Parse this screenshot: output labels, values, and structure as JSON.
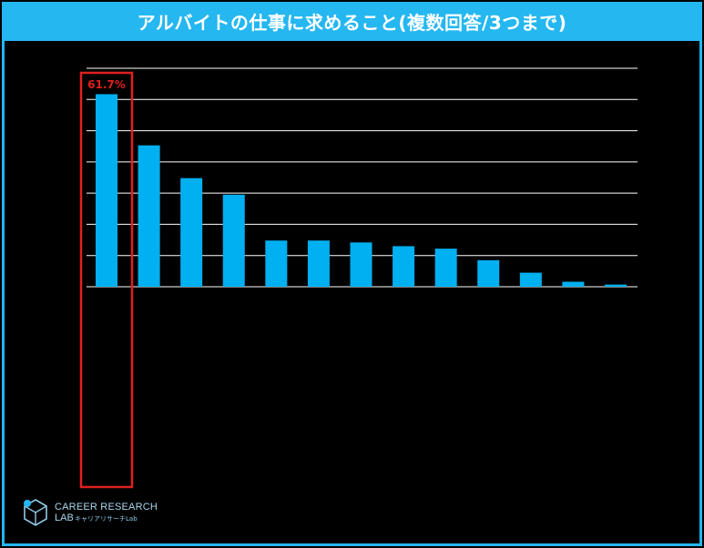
{
  "title": "アルバイトの仕事に求めること(複数回答/3つまで)",
  "colors": {
    "frame": "#25B7F0",
    "title_bg": "#25B7F0",
    "bar": "#00B0F0",
    "highlight": "#E0201E",
    "gridline": "#FFFFFF",
    "background": "#000000"
  },
  "logo": {
    "main": "CAREER RESEARCH",
    "lab": "LAB",
    "sub": "キャリアリサーチLab",
    "icon": "cube-logo-icon"
  },
  "chart_data": {
    "type": "bar",
    "ylim": [
      0,
      70
    ],
    "grid": true,
    "gridlines": [
      10,
      20,
      30,
      40,
      50,
      60,
      70
    ],
    "highlight_label": "61.7%",
    "values": [
      61.7,
      45.3,
      34.8,
      29.5,
      14.8,
      14.8,
      14.2,
      13.0,
      12.2,
      8.5,
      4.5,
      1.6,
      0.7
    ]
  }
}
